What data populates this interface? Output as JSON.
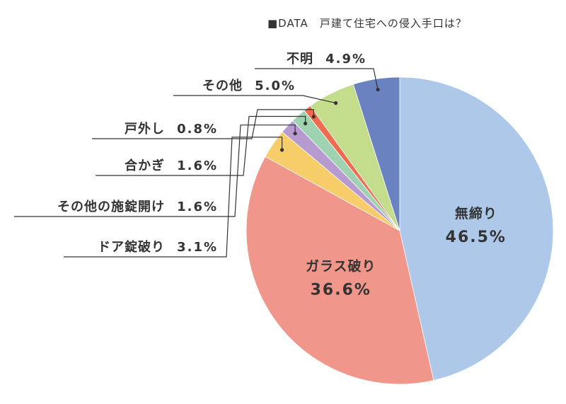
{
  "chart_data": {
    "type": "pie",
    "title": "■DATA　戸建て住宅への侵入手口は？",
    "slices": [
      {
        "label": "無締り",
        "value": 46.5,
        "display": "46.5%",
        "color": "#adc8e9",
        "label_placement": "inside"
      },
      {
        "label": "ガラス破り",
        "value": 36.6,
        "display": "36.6%",
        "color": "#f0968a",
        "label_placement": "inside"
      },
      {
        "label": "ドア錠破り",
        "value": 3.1,
        "display": "3.1%",
        "color": "#f6cd68",
        "label_placement": "callout"
      },
      {
        "label": "その他の施錠開け",
        "value": 1.6,
        "display": "1.6%",
        "color": "#b79ad0",
        "label_placement": "callout"
      },
      {
        "label": "合かぎ",
        "value": 1.6,
        "display": "1.6%",
        "color": "#9fd2b0",
        "label_placement": "callout"
      },
      {
        "label": "戸外し",
        "value": 0.8,
        "display": "0.8%",
        "color": "#ee6b4f",
        "label_placement": "callout"
      },
      {
        "label": "その他",
        "value": 5.0,
        "display": "5.0%",
        "color": "#c3dd8c",
        "label_placement": "callout"
      },
      {
        "label": "不明",
        "value": 4.9,
        "display": "4.9%",
        "color": "#6b82c0",
        "label_placement": "callout"
      }
    ],
    "start": "12 o'clock",
    "direction": "clockwise",
    "legend": "none"
  }
}
